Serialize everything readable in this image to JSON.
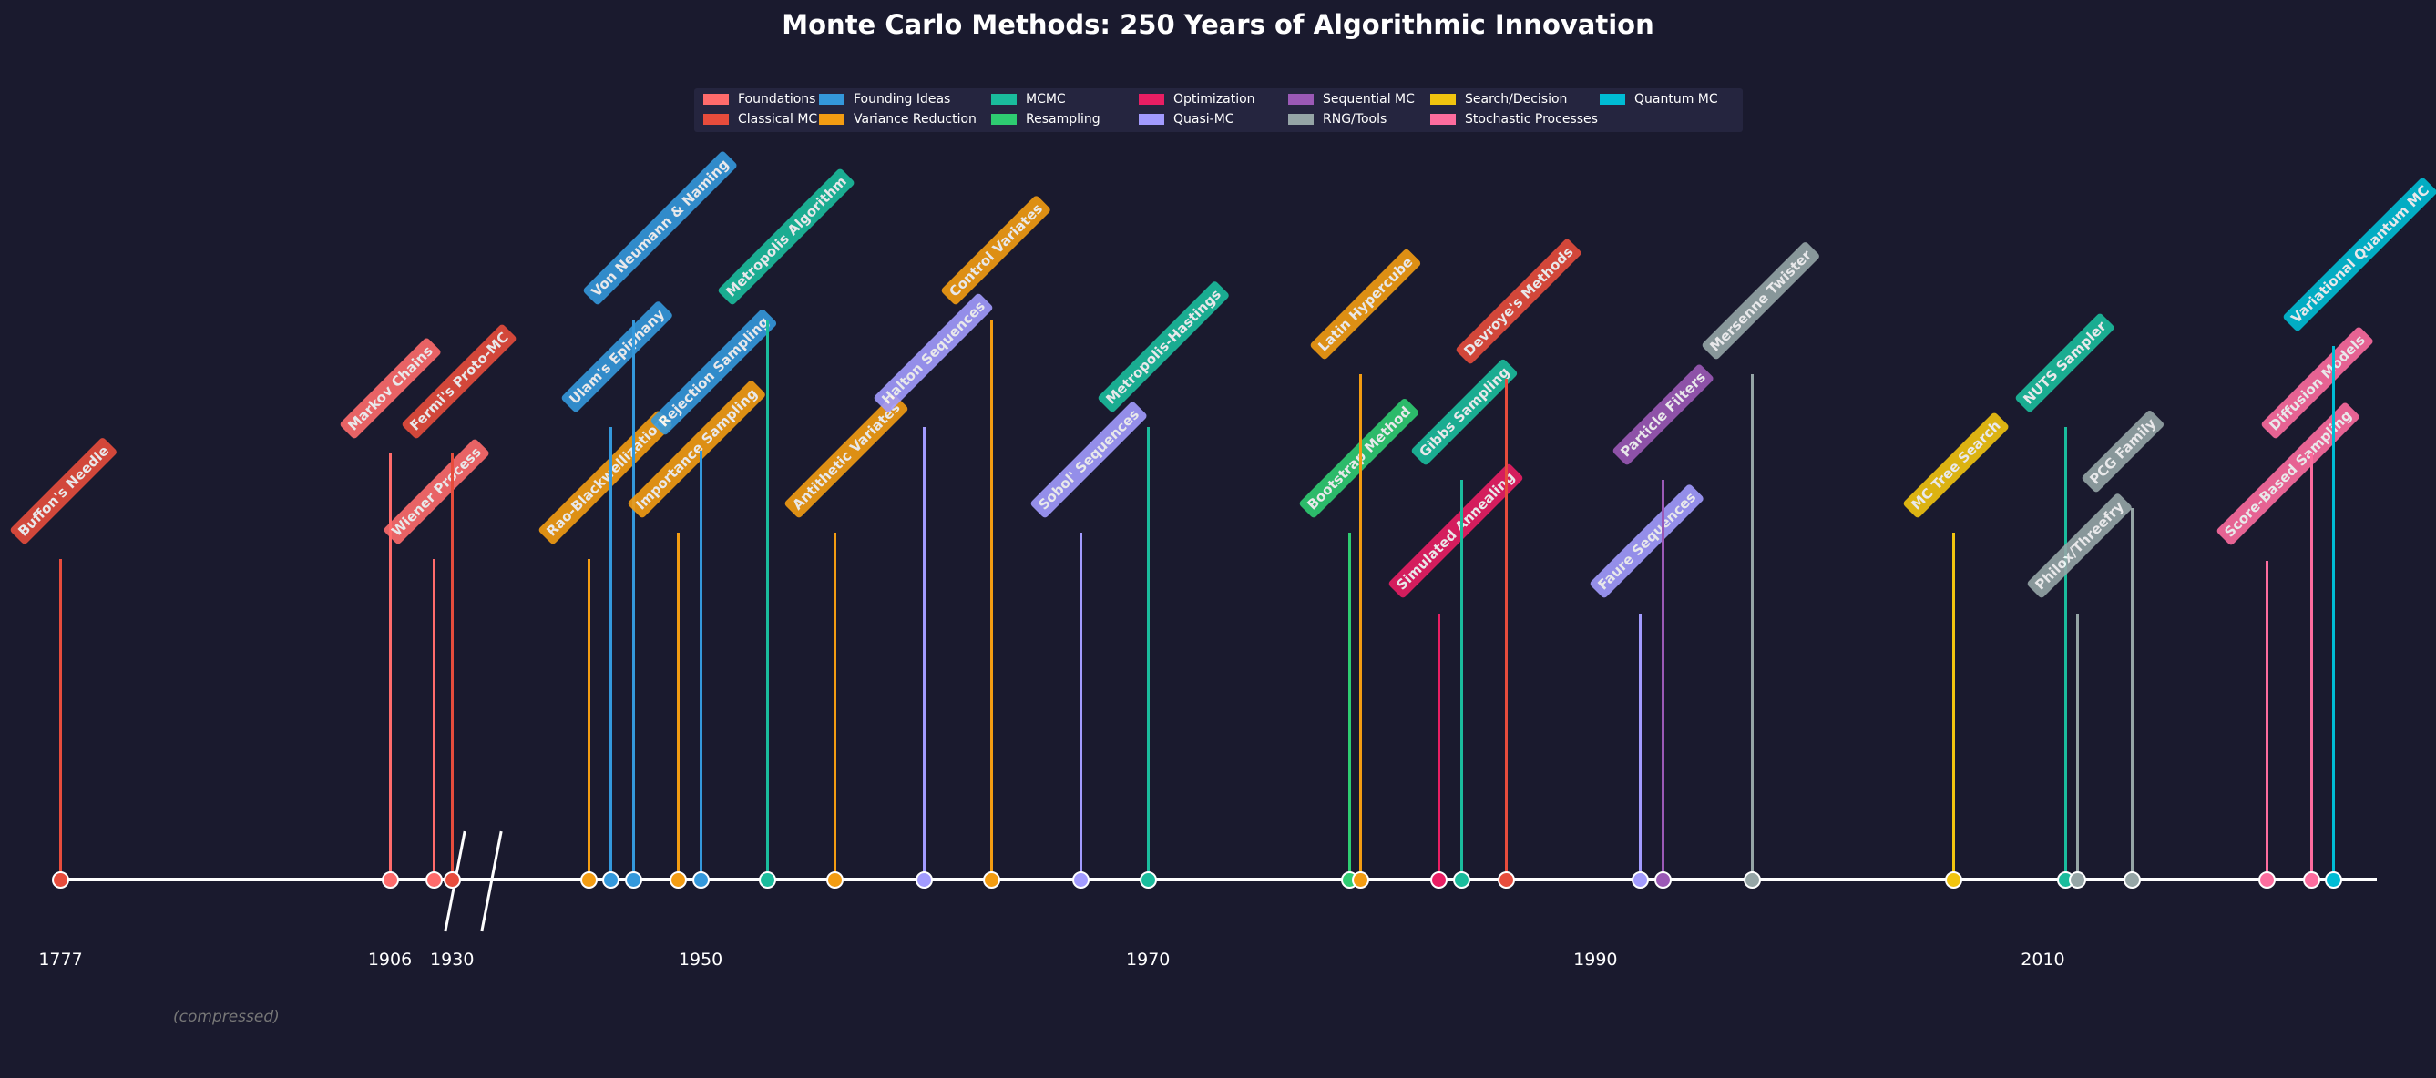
{
  "chart_data": {
    "type": "timeline",
    "title": "Monte Carlo Methods: 250 Years of Algorithmic Innovation",
    "x_ticks": [
      "1777",
      "1906",
      "1930",
      "1950",
      "1970",
      "1990",
      "2010"
    ],
    "axis_note": "(compressed)",
    "legend_position": "top-center",
    "categories": [
      {
        "name": "Foundations",
        "color": "#ff6b6b"
      },
      {
        "name": "Classical MC",
        "color": "#e74c3c"
      },
      {
        "name": "Founding Ideas",
        "color": "#3498db"
      },
      {
        "name": "Variance Reduction",
        "color": "#f39c12"
      },
      {
        "name": "MCMC",
        "color": "#1abc9c"
      },
      {
        "name": "Resampling",
        "color": "#2ecc71"
      },
      {
        "name": "Optimization",
        "color": "#e91e63"
      },
      {
        "name": "Quasi-MC",
        "color": "#a29bfe"
      },
      {
        "name": "Sequential MC",
        "color": "#9b59b6"
      },
      {
        "name": "RNG/Tools",
        "color": "#95a5a6"
      },
      {
        "name": "Search/Decision",
        "color": "#f1c40f"
      },
      {
        "name": "Stochastic Processes",
        "color": "#fd6c9e"
      },
      {
        "name": "Quantum MC",
        "color": "#00bcd4"
      }
    ],
    "events": [
      {
        "label": "Buffon's Needle",
        "year": 1777,
        "category": 1
      },
      {
        "label": "Markov Chains",
        "year": 1906,
        "category": 0
      },
      {
        "label": "Wiener Process",
        "year": 1923,
        "category": 0
      },
      {
        "label": "Fermi's Proto-MC",
        "year": 1930,
        "category": 1
      },
      {
        "label": "Rao-Blackwellization",
        "year": 1945,
        "category": 3
      },
      {
        "label": "Ulam's Epiphany",
        "year": 1946,
        "category": 2
      },
      {
        "label": "Von Neumann & Naming",
        "year": 1947,
        "category": 2
      },
      {
        "label": "Importance Sampling",
        "year": 1949,
        "category": 3
      },
      {
        "label": "Rejection Sampling",
        "year": 1950,
        "category": 2
      },
      {
        "label": "Metropolis Algorithm",
        "year": 1953,
        "category": 4
      },
      {
        "label": "Antithetic Variates",
        "year": 1956,
        "category": 3
      },
      {
        "label": "Halton Sequences",
        "year": 1960,
        "category": 7
      },
      {
        "label": "Control Variates",
        "year": 1963,
        "category": 3
      },
      {
        "label": "Sobol' Sequences",
        "year": 1967,
        "category": 7
      },
      {
        "label": "Metropolis-Hastings",
        "year": 1970,
        "category": 4
      },
      {
        "label": "Bootstrap Method",
        "year": 1979,
        "category": 5
      },
      {
        "label": "Latin Hypercube",
        "year": 1979,
        "category": 3
      },
      {
        "label": "Simulated Annealing",
        "year": 1983,
        "category": 6
      },
      {
        "label": "Gibbs Sampling",
        "year": 1984,
        "category": 4
      },
      {
        "label": "Devroye's Methods",
        "year": 1986,
        "category": 1
      },
      {
        "label": "Faure Sequences",
        "year": 1992,
        "category": 7
      },
      {
        "label": "Particle Filters",
        "year": 1993,
        "category": 8
      },
      {
        "label": "Mersenne Twister",
        "year": 1997,
        "category": 9
      },
      {
        "label": "MC Tree Search",
        "year": 2006,
        "category": 10
      },
      {
        "label": "NUTS Sampler",
        "year": 2011,
        "category": 4
      },
      {
        "label": "Philox/Threefry",
        "year": 2011,
        "category": 9
      },
      {
        "label": "PCG Family",
        "year": 2014,
        "category": 9
      },
      {
        "label": "Score-Based Sampling",
        "year": 2020,
        "category": 11
      },
      {
        "label": "Diffusion Models",
        "year": 2022,
        "category": 11
      },
      {
        "label": "Variational Quantum MC",
        "year": 2023,
        "category": 12
      }
    ]
  }
}
